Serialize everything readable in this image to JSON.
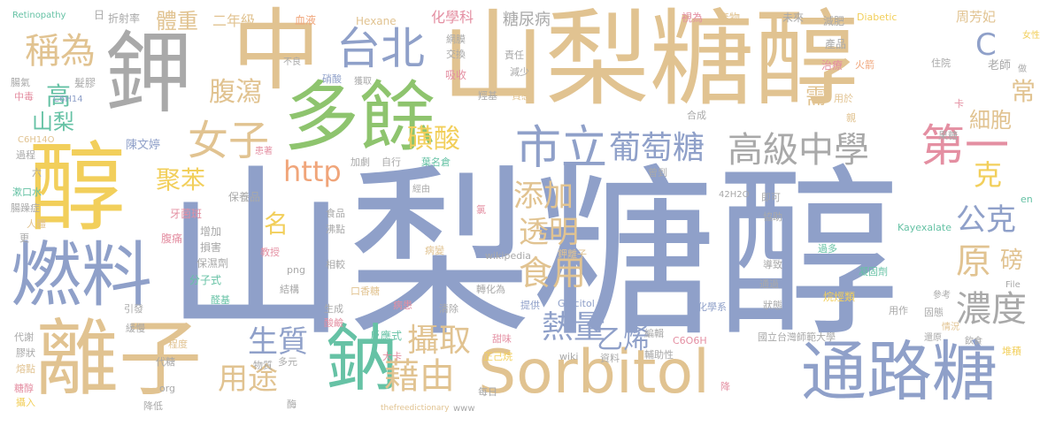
{
  "words": {
    "w1": "山梨糖醇",
    "w2": "山梨糖",
    "w3": "醇",
    "w4": "鉀",
    "w5": "中",
    "w6": "醇",
    "w7": "多餘",
    "w8": "離子",
    "w9": "燃料",
    "w10": "鈉",
    "w11": "Sorbitol",
    "w12": "通路糖",
    "w13": "台北",
    "w14": "市立",
    "w15": "女子",
    "w16": "稱為",
    "w17": "第一",
    "w18": "葡萄糖",
    "w19": "高級中學",
    "w20": "http",
    "w21": "藉由",
    "w22": "熱量",
    "w23": "濃度",
    "w24": "原",
    "w25": "公克",
    "w26": "食用",
    "w27": "添加",
    "w28": "透明",
    "w29": "攝取",
    "w30": "生質",
    "w31": "用途",
    "w32": "乙烯",
    "w33": "聚苯",
    "w34": "腹瀉",
    "w35": "磺酸",
    "w36": "體重",
    "w37": "高",
    "w38": "山梨",
    "w39": "名",
    "w40": "C",
    "w41": "細胞",
    "w42": "常",
    "w43": "磅",
    "w44": "克",
    "w45": "需",
    "w46": "糖尿病",
    "w47": "化學科",
    "w48": "二年級",
    "w49": "血液",
    "w50": "Hexane",
    "w51": "網膜",
    "w52": "交換",
    "w53": "吸收",
    "w54": "責任",
    "w55": "減少",
    "w56": "Diabetic",
    "w57": "周芳妃",
    "w58": "Retinopathy",
    "w59": "日",
    "w60": "折射率",
    "w61": "視為",
    "w62": "產物",
    "w63": "未來",
    "w64": "減肥",
    "w65": "產品",
    "w66": "女性",
    "w67": "老師",
    "w68": "治療",
    "w69": "火箭",
    "w70": "住院",
    "w71": "做",
    "w72": "腸氣",
    "w73": "髮膠",
    "w74": "中毒",
    "w75": "C6H14",
    "w76": "不良",
    "w77": "硝酸",
    "w78": "獲取",
    "w79": "羥基",
    "w80": "質感",
    "w81": "合成",
    "w82": "用於",
    "w83": "親",
    "w84": "卡",
    "w85": "果糖",
    "w86": "C6H14O",
    "w87": "過程",
    "w88": "六",
    "w89": "陳文婷",
    "w90": "加劇",
    "w91": "自行",
    "w92": "葉名倉",
    "w93": "曾到",
    "w94": "患著",
    "w95": "漱口水",
    "w96": "腸躁症",
    "w97": "人體",
    "w98": "更",
    "w99": "保養品",
    "w100": "牙菌斑",
    "w101": "經由",
    "w102": "42H2O",
    "w103": "即可",
    "w104": "協助",
    "w105": "Kayexalate",
    "w106": "en",
    "w107": "食品",
    "w108": "沸點",
    "w109": "氯",
    "w110": "增加",
    "w111": "損害",
    "w112": "保濕劑",
    "w113": "腹痛",
    "w114": "教授",
    "w115": "png",
    "w116": "病變",
    "w117": "wikipedia",
    "w118": "鉀離子",
    "w119": "導致",
    "w120": "過多",
    "w121": "凝固劑",
    "w122": "通過",
    "w123": "參考",
    "w124": "File",
    "w125": "分子式",
    "w126": "結構",
    "w127": "相較",
    "w128": "轉化為",
    "w129": "化學系",
    "w130": "狀態",
    "w131": "烷烴類",
    "w132": "用作",
    "w133": "引發",
    "w134": "醛基",
    "w135": "口香糖",
    "w136": "提供",
    "w137": "Glucitol",
    "w138": "固態",
    "w139": "情況",
    "w140": "代謝",
    "w141": "緩慢",
    "w142": "生成",
    "w143": "病患",
    "w144": "清除",
    "w145": "酸鹼",
    "w146": "反應式",
    "w147": "甜味",
    "w148": "編輯",
    "w149": "C6O6H",
    "w150": "國立台灣師範大學",
    "w151": "還原",
    "w152": "飲食",
    "w153": "堆積",
    "w154": "膠狀",
    "w155": "熔點",
    "w156": "程度",
    "w157": "代糖",
    "w158": "物質",
    "w159": "多元",
    "w160": "大卡",
    "w161": "正己烷",
    "w162": "wiki",
    "w163": "資料",
    "w164": "輔助性",
    "w165": "糖醇",
    "w166": "攝入",
    "w167": "org",
    "w168": "降低",
    "w169": "酶",
    "w170": "每日",
    "w171": "thefreedictionary",
    "w172": "www",
    "w173": "降"
  }
}
